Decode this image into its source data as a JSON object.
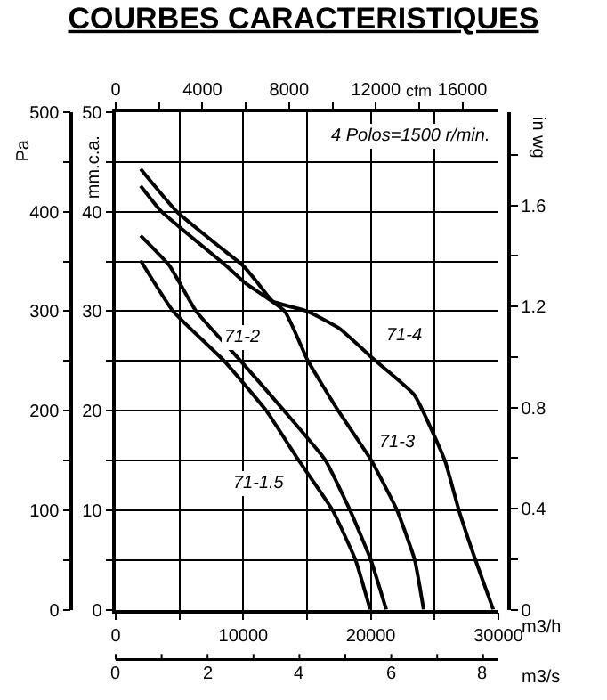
{
  "chart_data": {
    "type": "line",
    "title": "COURBES CARACTERISTIQUES",
    "annotations": [
      "4 Polos=1500 r/min.",
      "m3/s",
      "0",
      "2",
      "4",
      "6",
      "8"
    ],
    "xlabel": "m3/h",
    "xlim": [
      0,
      30000
    ],
    "xticks": [
      0,
      {
        "value": 5000,
        "label": null
      },
      10000,
      {
        "value": 15000,
        "label": null
      },
      20000,
      {
        "value": 25000,
        "label": null
      },
      30000
    ],
    "x2label": "cfm",
    "x2lim": [
      0,
      17657
    ],
    "x2ticks": [
      0,
      {
        "value": 2000,
        "label": null
      },
      4000,
      {
        "value": 6000,
        "label": null
      },
      8000,
      {
        "value": 10000,
        "label": null
      },
      12000,
      {
        "value": 14000,
        "label": null
      },
      16000
    ],
    "ylabel": "mm.c.a.",
    "ylim": [
      0,
      50
    ],
    "yticks": [
      0,
      {
        "value": 5,
        "label": null
      },
      10,
      {
        "value": 15,
        "label": null
      },
      20,
      {
        "value": 25,
        "label": null
      },
      30,
      {
        "value": 35,
        "label": null
      },
      40,
      {
        "value": 45,
        "label": null
      },
      50
    ],
    "y2label": "Pa",
    "y2lim": [
      0,
      500
    ],
    "y2ticks": [
      0,
      {
        "value": 50,
        "label": null
      },
      100,
      {
        "value": 150,
        "label": null
      },
      200,
      {
        "value": 250,
        "label": null
      },
      300,
      {
        "value": 350,
        "label": null
      },
      400,
      {
        "value": 450,
        "label": null
      },
      500
    ],
    "y3label": "in wg",
    "y3lim": [
      0,
      1.969
    ],
    "y3ticks": [
      0,
      {
        "value": 0.2,
        "label": null
      },
      0.4,
      {
        "value": 0.6,
        "label": null
      },
      0.8,
      {
        "value": 1.0,
        "label": null
      },
      1.2,
      {
        "value": 1.4,
        "label": null
      },
      1.6,
      {
        "value": 1.8,
        "label": null
      }
    ],
    "grid": true,
    "legend": false,
    "marker": "none",
    "line_style": "solid",
    "series": [
      {
        "name": "71-4",
        "color": "#000000",
        "x": [
          1950,
          4800,
          8600,
          9970,
          11160,
          12300,
          15000,
          17500,
          20200,
          23400,
          25800,
          26900,
          28200,
          29600
        ],
        "values": [
          44.3,
          40,
          36,
          34.6,
          32.8,
          31,
          30,
          28.3,
          25.2,
          21.6,
          15,
          10,
          5,
          0
        ]
      },
      {
        "name": "71-3",
        "color": "#000000",
        "x": [
          1950,
          3600,
          8630,
          10190,
          13250,
          15070,
          17440,
          20000,
          22050,
          23440,
          24140
        ],
        "values": [
          42.6,
          40,
          34.6,
          32.8,
          30,
          25,
          20,
          15.1,
          10,
          5,
          0
        ]
      },
      {
        "name": "71-2",
        "color": "#000000",
        "x": [
          1950,
          4200,
          6300,
          9800,
          13200,
          16400,
          18370,
          20000,
          21210
        ],
        "values": [
          37.6,
          34.6,
          30,
          25,
          20,
          15.1,
          10,
          5,
          0
        ]
      },
      {
        "name": "71-1.5",
        "color": "#000000",
        "x": [
          1950,
          4500,
          8500,
          11800,
          14300,
          17000,
          18800,
          19950
        ],
        "values": [
          35.1,
          30,
          25,
          20,
          15.1,
          10,
          5,
          0
        ]
      }
    ]
  }
}
